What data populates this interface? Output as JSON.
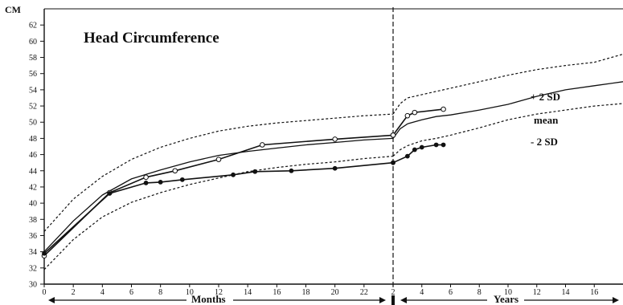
{
  "chart_data": {
    "type": "line",
    "title": "Head Circumference",
    "ylabel": "CM",
    "ylim": [
      30,
      64
    ],
    "y_ticks": [
      30,
      32,
      34,
      36,
      38,
      40,
      42,
      44,
      46,
      48,
      50,
      52,
      54,
      56,
      58,
      60,
      62
    ],
    "months_segment": {
      "label": "Months",
      "xlim": [
        0,
        24
      ],
      "x_ticks": [
        0,
        2,
        4,
        6,
        8,
        10,
        12,
        14,
        16,
        18,
        20,
        22
      ],
      "tick_labels": [
        "0",
        "2",
        "4",
        "6",
        "8",
        "10",
        "12",
        "14",
        "16",
        "18",
        "20",
        "22"
      ]
    },
    "years_segment": {
      "label": "Years",
      "xlim": [
        2,
        18
      ],
      "x_ticks": [
        2,
        4,
        6,
        8,
        10,
        12,
        14,
        16
      ],
      "tick_labels": [
        "2",
        "4",
        "6",
        "8",
        "10",
        "12",
        "14",
        "16"
      ]
    },
    "series": [
      {
        "name": "+ 2 SD",
        "style": "dotted",
        "months": {
          "x": [
            0,
            1,
            2,
            4,
            6,
            8,
            10,
            12,
            14,
            16,
            18,
            20,
            22,
            24
          ],
          "y": [
            36.5,
            38.5,
            40.5,
            43.3,
            45.4,
            46.9,
            48.0,
            48.9,
            49.5,
            49.9,
            50.2,
            50.5,
            50.8,
            51.0
          ]
        },
        "years": {
          "x": [
            2,
            2.5,
            3,
            4,
            5,
            6,
            8,
            10,
            12,
            14,
            16,
            18
          ],
          "y": [
            51.0,
            52.3,
            53.0,
            53.4,
            53.8,
            54.2,
            55.0,
            55.8,
            56.5,
            57.0,
            57.4,
            58.4
          ]
        }
      },
      {
        "name": "mean",
        "style": "solid",
        "months": {
          "x": [
            0,
            2,
            4,
            6,
            8,
            10,
            12,
            14,
            16,
            18,
            20,
            22,
            24
          ],
          "y": [
            34.0,
            37.8,
            41.0,
            43.0,
            44.1,
            45.1,
            45.9,
            46.4,
            46.8,
            47.2,
            47.5,
            47.8,
            48.0
          ]
        },
        "years": {
          "x": [
            2,
            2.5,
            3,
            4,
            5,
            6,
            8,
            10,
            12,
            14,
            16,
            18
          ],
          "y": [
            48.0,
            49.2,
            49.8,
            50.3,
            50.7,
            50.9,
            51.5,
            52.2,
            53.2,
            54.0,
            54.5,
            55.0
          ]
        }
      },
      {
        "name": "- 2 SD",
        "style": "dotted",
        "months": {
          "x": [
            0,
            2,
            4,
            6,
            8,
            10,
            12,
            14,
            16,
            18,
            20,
            22,
            24
          ],
          "y": [
            31.8,
            35.5,
            38.3,
            40.1,
            41.3,
            42.3,
            43.1,
            43.9,
            44.4,
            44.8,
            45.1,
            45.5,
            45.8
          ]
        },
        "years": {
          "x": [
            2,
            2.5,
            3,
            4,
            5,
            6,
            8,
            10,
            12,
            14,
            16,
            18
          ],
          "y": [
            45.8,
            46.6,
            47.1,
            47.7,
            48.0,
            48.4,
            49.3,
            50.3,
            51.0,
            51.5,
            52.0,
            52.3
          ]
        }
      },
      {
        "name": "",
        "style": "open-circles",
        "months": {
          "x": [
            0,
            4.5,
            7,
            9,
            12,
            15,
            20,
            24
          ],
          "y": [
            33.5,
            41.3,
            43.2,
            44.0,
            45.4,
            47.2,
            47.9,
            48.4
          ]
        },
        "years": {
          "x": [
            2,
            3,
            3.5,
            5.5
          ],
          "y": [
            48.4,
            50.8,
            51.2,
            51.6
          ]
        }
      },
      {
        "name": "",
        "style": "filled-circles",
        "months": {
          "x": [
            0,
            4.5,
            7,
            8,
            9.5,
            13,
            14.5,
            17,
            20,
            24
          ],
          "y": [
            33.8,
            41.2,
            42.5,
            42.6,
            42.9,
            43.5,
            43.9,
            44.0,
            44.3,
            45.0
          ]
        },
        "years": {
          "x": [
            2,
            3,
            3.5,
            4,
            5,
            5.5
          ],
          "y": [
            45.0,
            45.8,
            46.6,
            46.9,
            47.2,
            47.2
          ]
        }
      }
    ],
    "annotations": [
      "+ 2 SD",
      "mean",
      "- 2 SD"
    ]
  }
}
